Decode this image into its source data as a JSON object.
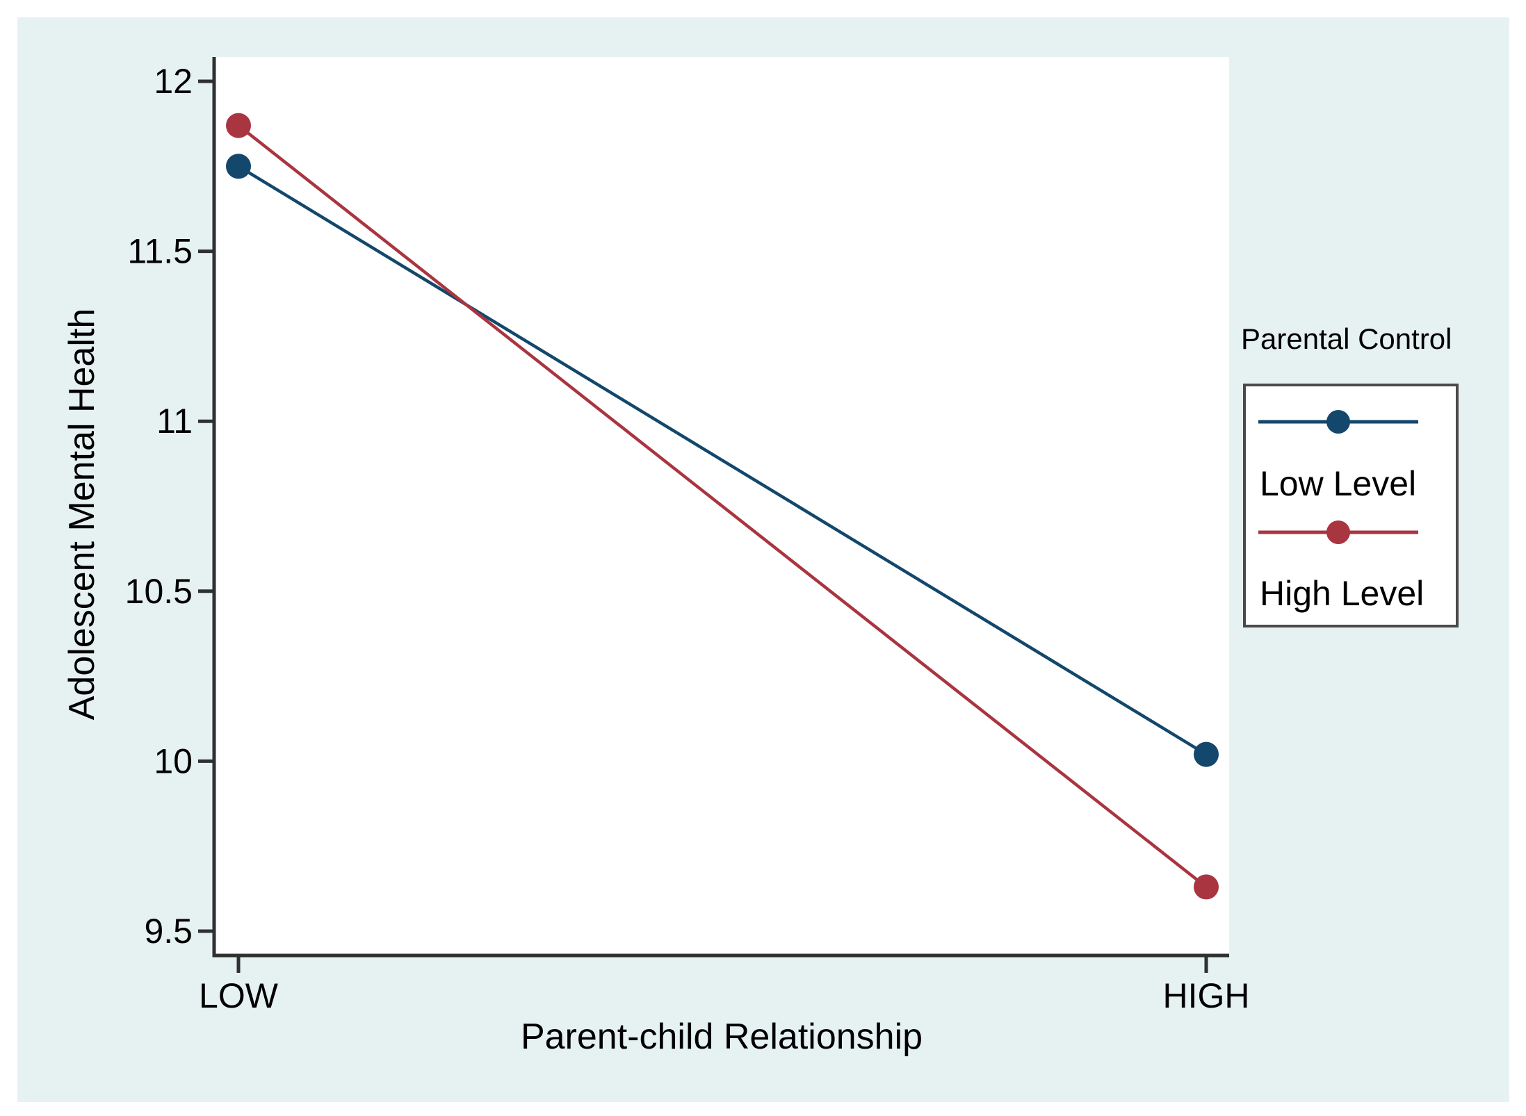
{
  "chart_data": {
    "type": "line",
    "title": "",
    "categories": [
      "LOW",
      "HIGH"
    ],
    "series": [
      {
        "name": "Low Level",
        "color": "#13476b",
        "values": [
          11.75,
          10.02
        ]
      },
      {
        "name": "High Level",
        "color": "#a93540",
        "values": [
          11.87,
          9.63
        ]
      }
    ],
    "xlabel": "Parent-child Relationship",
    "ylabel": "Adolescent Mental Health",
    "ylim": [
      9.5,
      12
    ],
    "yticks": [
      12,
      11.5,
      11,
      10.5,
      10,
      9.5
    ],
    "grid": false,
    "legend": {
      "title": "Parental Control",
      "position": "right-outside"
    },
    "colors": {
      "background": "#e6f1f2",
      "plot_bg": "#ffffff",
      "axis": "#303030",
      "text": "#000000",
      "legend_border": "#4a4a4a",
      "legend_bg": "#ffffff"
    }
  }
}
